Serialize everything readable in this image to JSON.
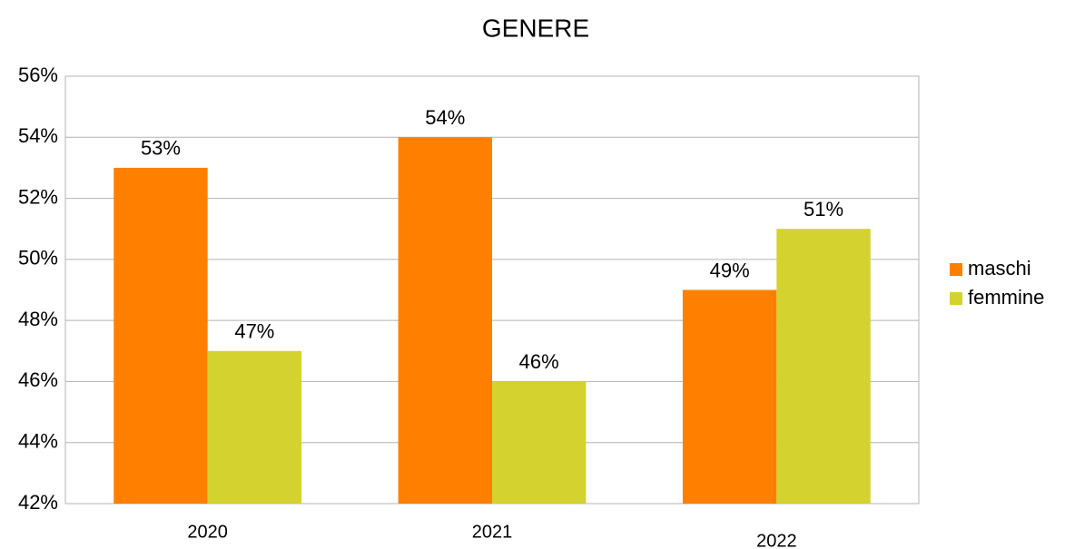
{
  "chart_data": {
    "type": "bar",
    "title": "GENERE",
    "categories": [
      "2020",
      "2021",
      "2022"
    ],
    "series": [
      {
        "name": "maschi",
        "color": "#ff8000",
        "values": [
          53,
          54,
          49
        ],
        "value_labels": [
          "53%",
          "54%",
          "49%"
        ]
      },
      {
        "name": "femmine",
        "color": "#d4d22e",
        "values": [
          47,
          46,
          51
        ],
        "value_labels": [
          "47%",
          "46%",
          "51%"
        ]
      }
    ],
    "ylim": [
      42,
      56
    ],
    "yticks": [
      {
        "value": 42,
        "label": "42%"
      },
      {
        "value": 44,
        "label": "44%"
      },
      {
        "value": 46,
        "label": "46%"
      },
      {
        "value": 48,
        "label": "48%"
      },
      {
        "value": 50,
        "label": "50%"
      },
      {
        "value": 52,
        "label": "52%"
      },
      {
        "value": 54,
        "label": "54%"
      },
      {
        "value": 56,
        "label": "56%"
      }
    ],
    "grid": true,
    "legend": "right"
  }
}
